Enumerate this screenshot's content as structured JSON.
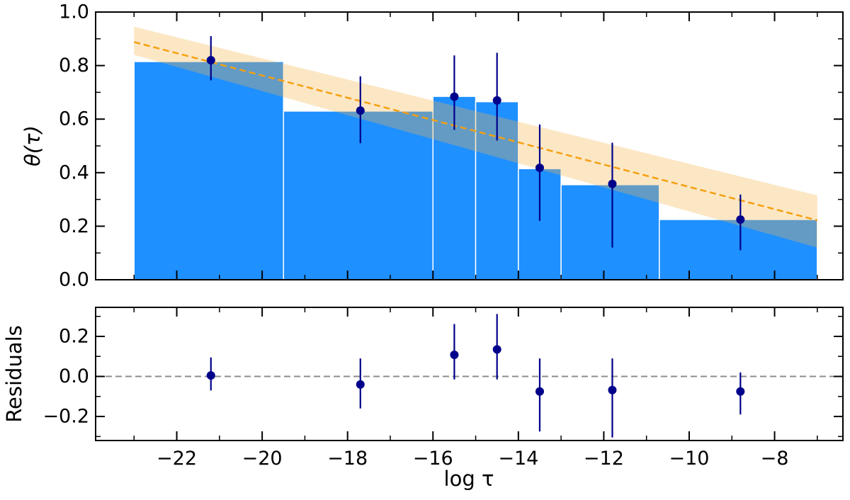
{
  "chart_data": [
    {
      "type": "bar",
      "panel": "main",
      "ylabel": "θ(τ)",
      "xlim": [
        -23.9,
        -6.4
      ],
      "ylim": [
        0.0,
        1.0
      ],
      "yticks": [
        0.0,
        0.2,
        0.4,
        0.6,
        0.8,
        1.0
      ],
      "ytick_labels": [
        "0.0",
        "0.2",
        "0.4",
        "0.6",
        "0.8",
        "1.0"
      ],
      "bar_color": "#1e90ff",
      "point_color": "#00008b",
      "bars": [
        {
          "x0": -23.0,
          "x1": -19.5,
          "value": 0.815
        },
        {
          "x0": -19.5,
          "x1": -16.0,
          "value": 0.63
        },
        {
          "x0": -16.0,
          "x1": -15.0,
          "value": 0.685
        },
        {
          "x0": -15.0,
          "x1": -14.0,
          "value": 0.665
        },
        {
          "x0": -14.0,
          "x1": -13.0,
          "value": 0.415
        },
        {
          "x0": -13.0,
          "x1": -10.7,
          "value": 0.355
        },
        {
          "x0": -10.7,
          "x1": -7.0,
          "value": 0.225
        }
      ],
      "points": [
        {
          "x": -21.2,
          "y": 0.82,
          "ylow": 0.745,
          "yhigh": 0.91
        },
        {
          "x": -17.7,
          "y": 0.632,
          "ylow": 0.51,
          "yhigh": 0.76
        },
        {
          "x": -15.5,
          "y": 0.684,
          "ylow": 0.56,
          "yhigh": 0.838
        },
        {
          "x": -14.5,
          "y": 0.67,
          "ylow": 0.52,
          "yhigh": 0.848
        },
        {
          "x": -13.5,
          "y": 0.418,
          "ylow": 0.22,
          "yhigh": 0.58
        },
        {
          "x": -11.8,
          "y": 0.358,
          "ylow": 0.12,
          "yhigh": 0.512
        },
        {
          "x": -8.8,
          "y": 0.225,
          "ylow": 0.11,
          "yhigh": 0.318
        }
      ],
      "fit_line": {
        "x": [
          -23.0,
          -7.0
        ],
        "y": [
          0.888,
          0.222
        ],
        "color": "#f5a010",
        "style": "dashed"
      },
      "fit_band": {
        "x": [
          -23.0,
          -7.0
        ],
        "upper": [
          0.945,
          0.315
        ],
        "lower": [
          0.84,
          0.12
        ],
        "color": "#fde8c4"
      }
    },
    {
      "type": "scatter",
      "panel": "residuals",
      "xlabel": "log τ",
      "ylabel": "Residuals",
      "xlim": [
        -23.9,
        -6.4
      ],
      "ylim": [
        -0.32,
        0.345
      ],
      "yticks": [
        -0.2,
        0.0,
        0.2
      ],
      "ytick_labels": [
        "−0.2",
        "0.0",
        "0.2"
      ],
      "xticks": [
        -22,
        -20,
        -18,
        -16,
        -14,
        -12,
        -10,
        -8
      ],
      "xtick_labels": [
        "−22",
        "−20",
        "−18",
        "−16",
        "−14",
        "−12",
        "−10",
        "−8"
      ],
      "zero_line": {
        "y": 0.0,
        "color": "#8c8c8c",
        "style": "dashed"
      },
      "point_color": "#00008b",
      "points": [
        {
          "x": -21.2,
          "y": 0.005,
          "ylow": -0.07,
          "yhigh": 0.095
        },
        {
          "x": -17.7,
          "y": -0.04,
          "ylow": -0.16,
          "yhigh": 0.09
        },
        {
          "x": -15.5,
          "y": 0.108,
          "ylow": -0.015,
          "yhigh": 0.262
        },
        {
          "x": -14.5,
          "y": 0.135,
          "ylow": -0.015,
          "yhigh": 0.312
        },
        {
          "x": -13.5,
          "y": -0.075,
          "ylow": -0.275,
          "yhigh": 0.09
        },
        {
          "x": -11.8,
          "y": -0.068,
          "ylow": -0.305,
          "yhigh": 0.09
        },
        {
          "x": -8.8,
          "y": -0.075,
          "ylow": -0.19,
          "yhigh": 0.02
        }
      ]
    }
  ]
}
